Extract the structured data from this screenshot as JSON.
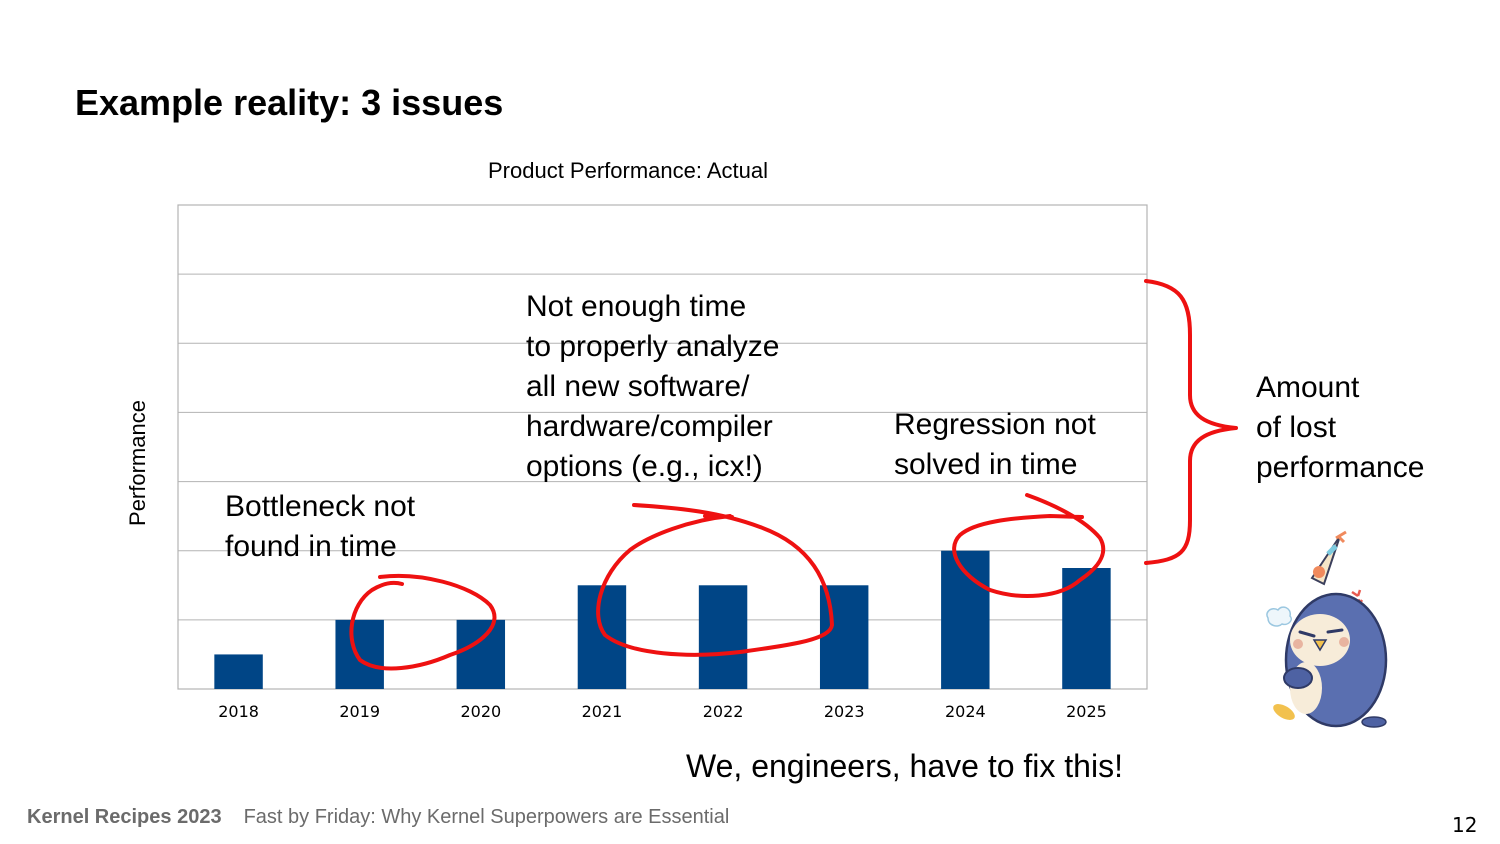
{
  "slide": {
    "title": "Example reality: 3 issues",
    "page_number": "12",
    "bottom_note": "We, engineers, have to fix this!",
    "footer": {
      "conference": "Kernel Recipes 2023",
      "talk_title": "Fast by Friday: Why Kernel Superpowers are Essential"
    }
  },
  "annotations": {
    "bottleneck": "Bottleneck not\nfound in time",
    "not_enough_time": "Not enough time\nto properly analyze\nall new software/\nhardware/compiler\noptions (e.g., icx!)",
    "regression": "Regression not\nsolved in time",
    "lost_performance": "Amount\nof lost\nperformance"
  },
  "illustration": {
    "icon": "grumpy-penguin-party-hat"
  },
  "colors": {
    "bar": "#004586",
    "annotation_red": "#ee1111",
    "grid": "#b3b3b3"
  },
  "chart_data": {
    "type": "bar",
    "title": "Product Performance: Actual",
    "xlabel": "",
    "ylabel": "Performance",
    "categories": [
      "2018",
      "2019",
      "2020",
      "2021",
      "2022",
      "2023",
      "2024",
      "2025"
    ],
    "values": [
      0.5,
      1.0,
      1.0,
      1.5,
      1.5,
      1.5,
      2.0,
      1.75
    ],
    "ylim": [
      0,
      7
    ],
    "y_ticks_shown": false,
    "grid": true,
    "grid_step": 1,
    "legend": "none",
    "annotations": [
      {
        "text": "Bottleneck not found in time",
        "circled_categories": [
          "2019",
          "2020"
        ]
      },
      {
        "text": "Not enough time to properly analyze all new software/hardware/compiler options (e.g., icx!)",
        "circled_categories": [
          "2021",
          "2022",
          "2023"
        ]
      },
      {
        "text": "Regression not solved in time",
        "circled_categories": [
          "2024",
          "2025"
        ]
      },
      {
        "text": "Amount of lost performance",
        "brace_range": [
          2.0,
          6.0
        ]
      }
    ]
  }
}
